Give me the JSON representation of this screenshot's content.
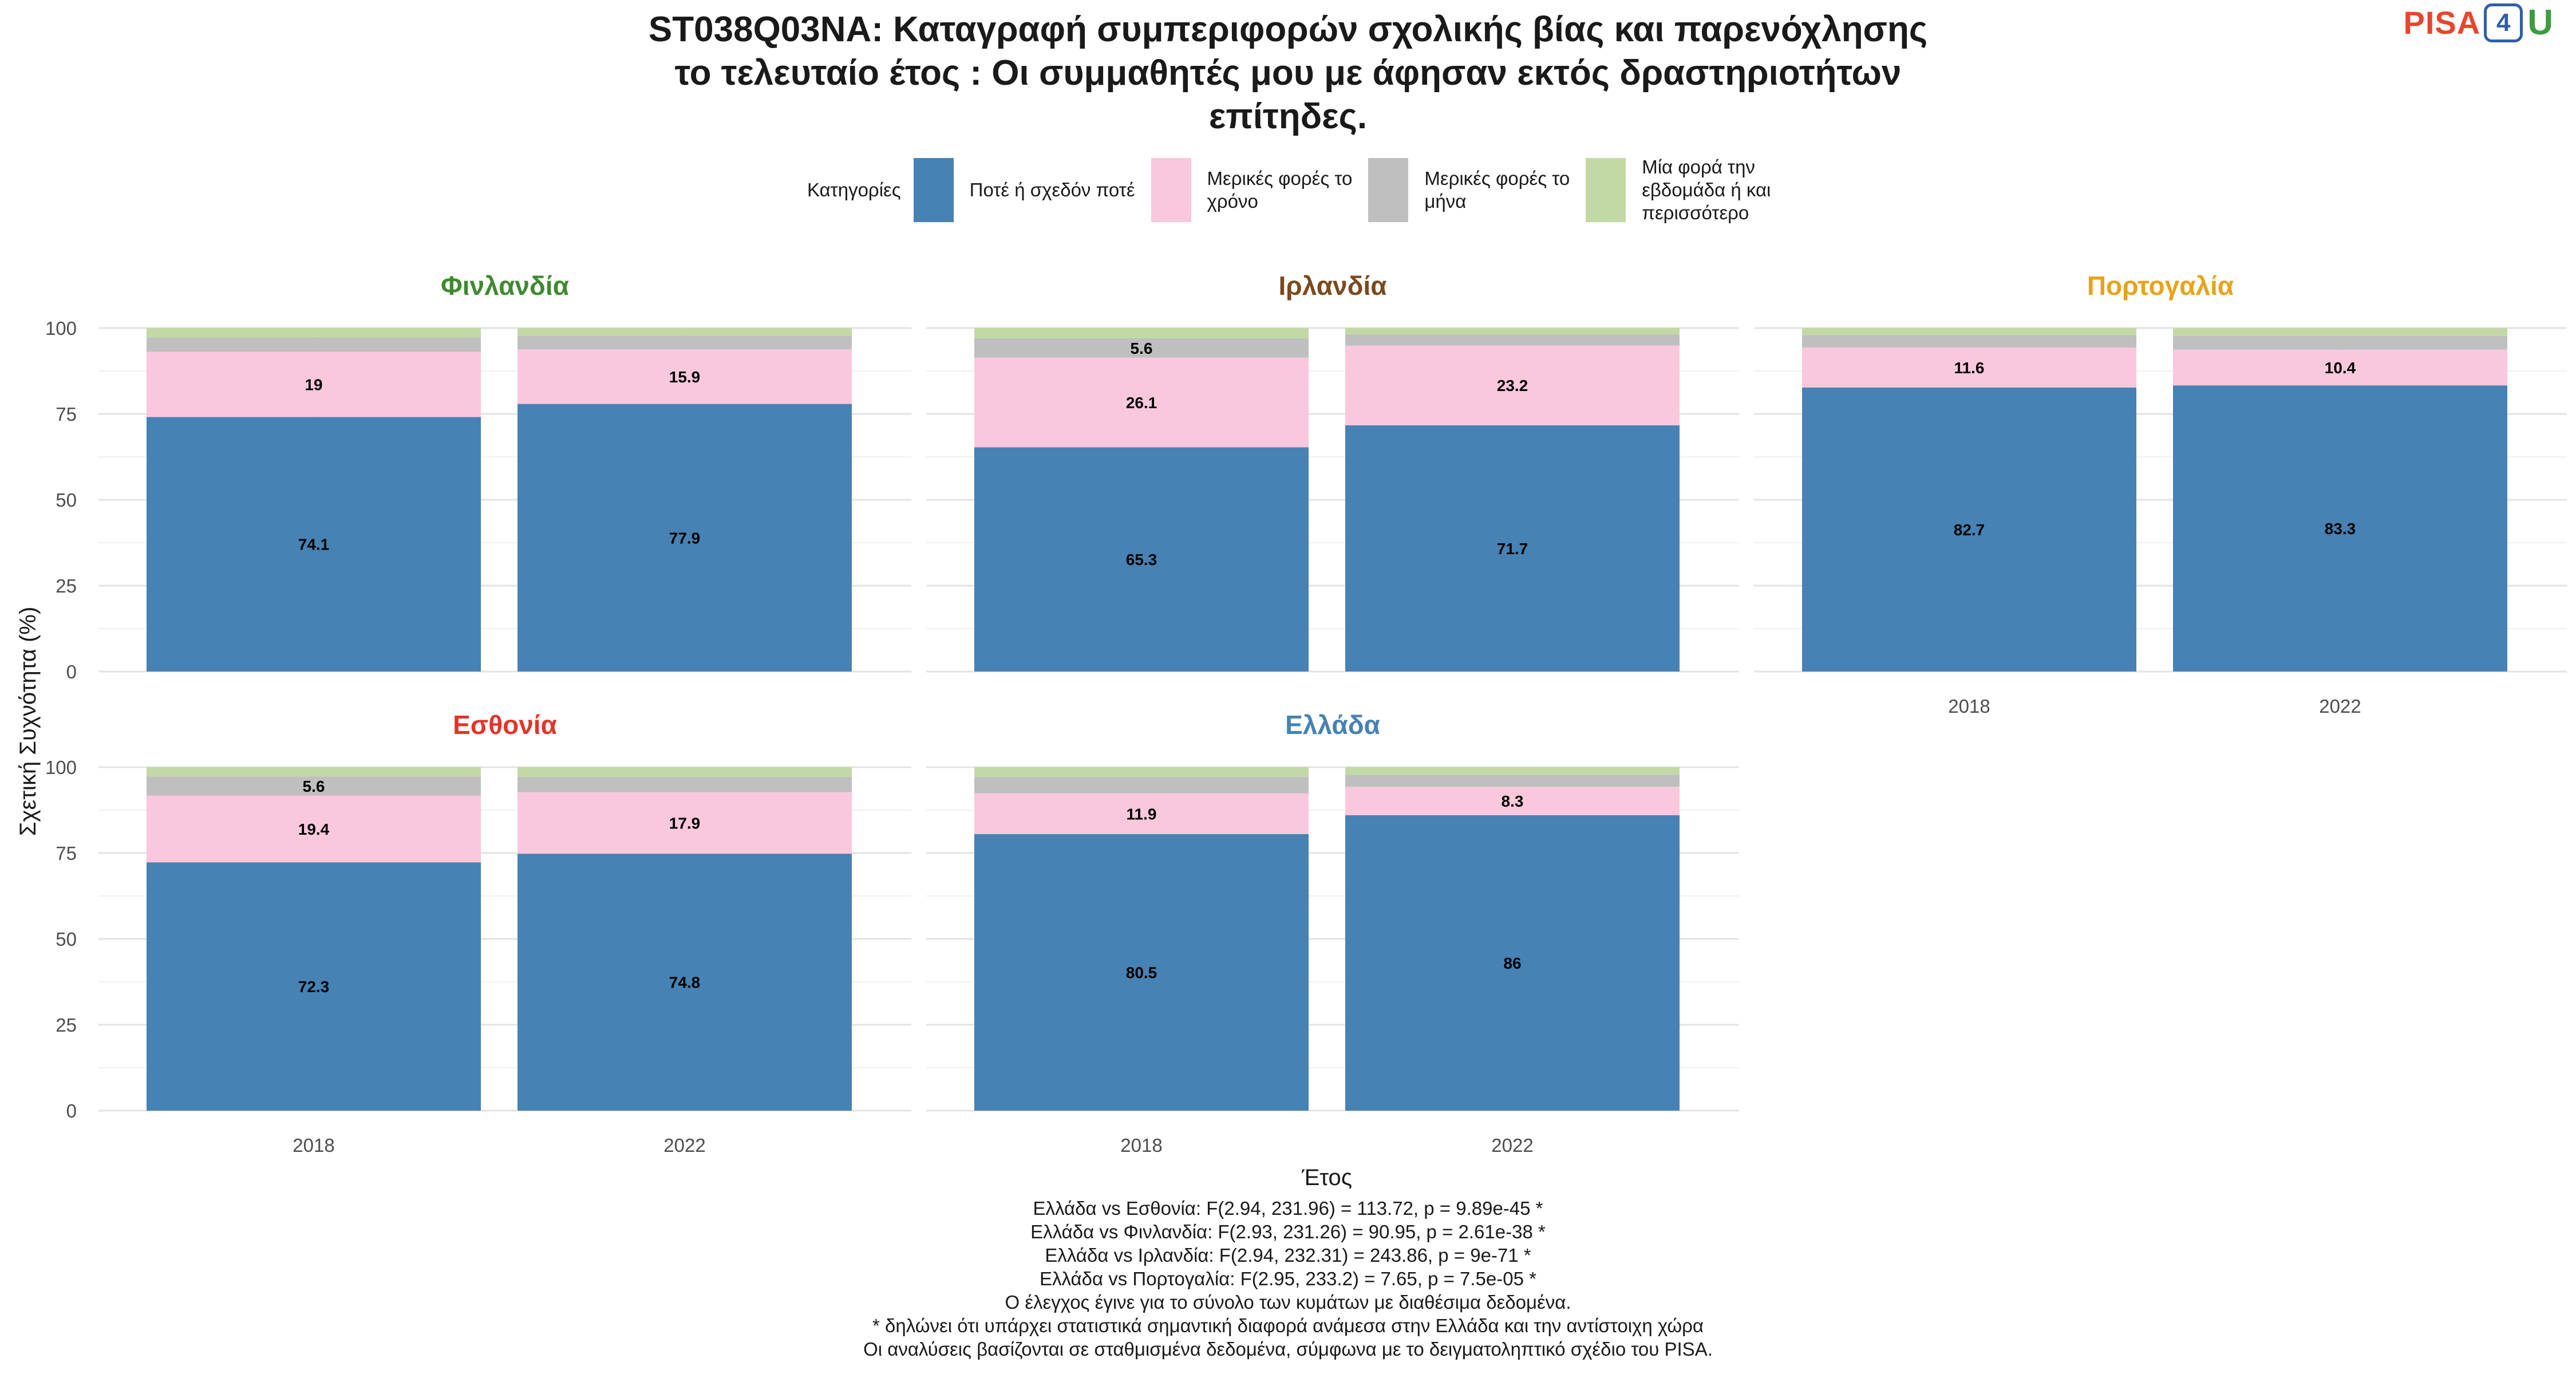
{
  "title_lines": [
    "ST038Q03NA: Καταγραφή συμπεριφορών σχολικής βίας και παρενόχλησης",
    "το τελευταίο έτος : Οι συμμαθητές μου με άφησαν εκτός δραστηριοτήτων",
    "επίτηδες."
  ],
  "logo": {
    "pisa": "PISA",
    "four": "4",
    "u": "U"
  },
  "legend": {
    "title": "Κατηγορίες",
    "items": [
      {
        "lines": [
          "Ποτέ ή σχεδόν ποτέ"
        ],
        "color": "#4682b4"
      },
      {
        "lines": [
          "Μερικές φορές το",
          "χρόνο"
        ],
        "color": "#f9c8dc"
      },
      {
        "lines": [
          "Μερικές φορές το",
          "μήνα"
        ],
        "color": "#bfbfbf"
      },
      {
        "lines": [
          "Μία φορά την",
          "εβδομάδα ή και",
          "περισσότερο"
        ],
        "color": "#c3d9a5"
      }
    ]
  },
  "chart_data": {
    "type": "bar",
    "stacked": true,
    "xlabel": "Έτος",
    "ylabel": "Σχετική Συχνότητα (%)",
    "ylim": [
      0,
      100
    ],
    "yticks": [
      0,
      25,
      50,
      75,
      100
    ],
    "categories": [
      "2018",
      "2022"
    ],
    "series_names": [
      "Ποτέ ή σχεδόν ποτέ",
      "Μερικές φορές το χρόνο",
      "Μερικές φορές το μήνα",
      "Μία φορά την εβδομάδα ή και περισσότερο"
    ],
    "series_colors": [
      "#4682b4",
      "#f9c8dc",
      "#bfbfbf",
      "#c3d9a5"
    ],
    "panels": [
      {
        "country": "Φινλανδία",
        "color": "#3f8a2f",
        "bars": [
          {
            "year": "2018",
            "values": [
              74.1,
              19,
              4.2,
              2.7
            ],
            "labels": [
              "74.1",
              "19",
              "",
              ""
            ]
          },
          {
            "year": "2022",
            "values": [
              77.9,
              15.9,
              4.0,
              2.2
            ],
            "labels": [
              "77.9",
              "15.9",
              "",
              ""
            ]
          }
        ]
      },
      {
        "country": "Ιρλανδία",
        "color": "#7a4a1e",
        "bars": [
          {
            "year": "2018",
            "values": [
              65.3,
              26.1,
              5.6,
              3.0
            ],
            "labels": [
              "65.3",
              "26.1",
              "5.6",
              ""
            ]
          },
          {
            "year": "2022",
            "values": [
              71.7,
              23.2,
              3.3,
              1.8
            ],
            "labels": [
              "71.7",
              "23.2",
              "",
              ""
            ]
          }
        ]
      },
      {
        "country": "Πορτογαλία",
        "color": "#e8a21a",
        "bars": [
          {
            "year": "2018",
            "values": [
              82.7,
              11.6,
              3.6,
              2.1
            ],
            "labels": [
              "82.7",
              "11.6",
              "",
              ""
            ]
          },
          {
            "year": "2022",
            "values": [
              83.3,
              10.4,
              4.0,
              2.3
            ],
            "labels": [
              "83.3",
              "10.4",
              "",
              ""
            ]
          }
        ]
      },
      {
        "country": "Εσθονία",
        "color": "#e0352b",
        "bars": [
          {
            "year": "2018",
            "values": [
              72.3,
              19.4,
              5.6,
              2.7
            ],
            "labels": [
              "72.3",
              "19.4",
              "5.6",
              ""
            ]
          },
          {
            "year": "2022",
            "values": [
              74.8,
              17.9,
              4.5,
              2.8
            ],
            "labels": [
              "74.8",
              "17.9",
              "",
              ""
            ]
          }
        ]
      },
      {
        "country": "Ελλάδα",
        "color": "#4682b4",
        "bars": [
          {
            "year": "2018",
            "values": [
              80.5,
              11.9,
              4.8,
              2.8
            ],
            "labels": [
              "80.5",
              "11.9",
              "",
              ""
            ]
          },
          {
            "year": "2022",
            "values": [
              86,
              8.3,
              3.5,
              2.2
            ],
            "labels": [
              "86",
              "8.3",
              "",
              ""
            ]
          }
        ]
      }
    ]
  },
  "footer_lines": [
    "Ελλάδα vs Εσθονία: F(2.94, 231.96) = 113.72, p = 9.89e-45 *",
    "Ελλάδα vs Φινλανδία: F(2.93, 231.26) = 90.95, p = 2.61e-38 *",
    "Ελλάδα vs Ιρλανδία: F(2.94, 232.31) = 243.86, p = 9e-71 *",
    "Ελλάδα vs Πορτογαλία: F(2.95, 233.2) = 7.65, p = 7.5e-05 *",
    "Ο έλεγχος έγινε για το σύνολο των κυμάτων με διαθέσιμα δεδομένα.",
    "* δηλώνει ότι υπάρχει στατιστικά σημαντική διαφορά ανάμεσα στην Ελλάδα και την αντίστοιχη χώρα",
    "Οι αναλύσεις βασίζονται σε σταθμισμένα δεδομένα, σύμφωνα με το δειγματοληπτικό σχέδιο του PISA."
  ]
}
